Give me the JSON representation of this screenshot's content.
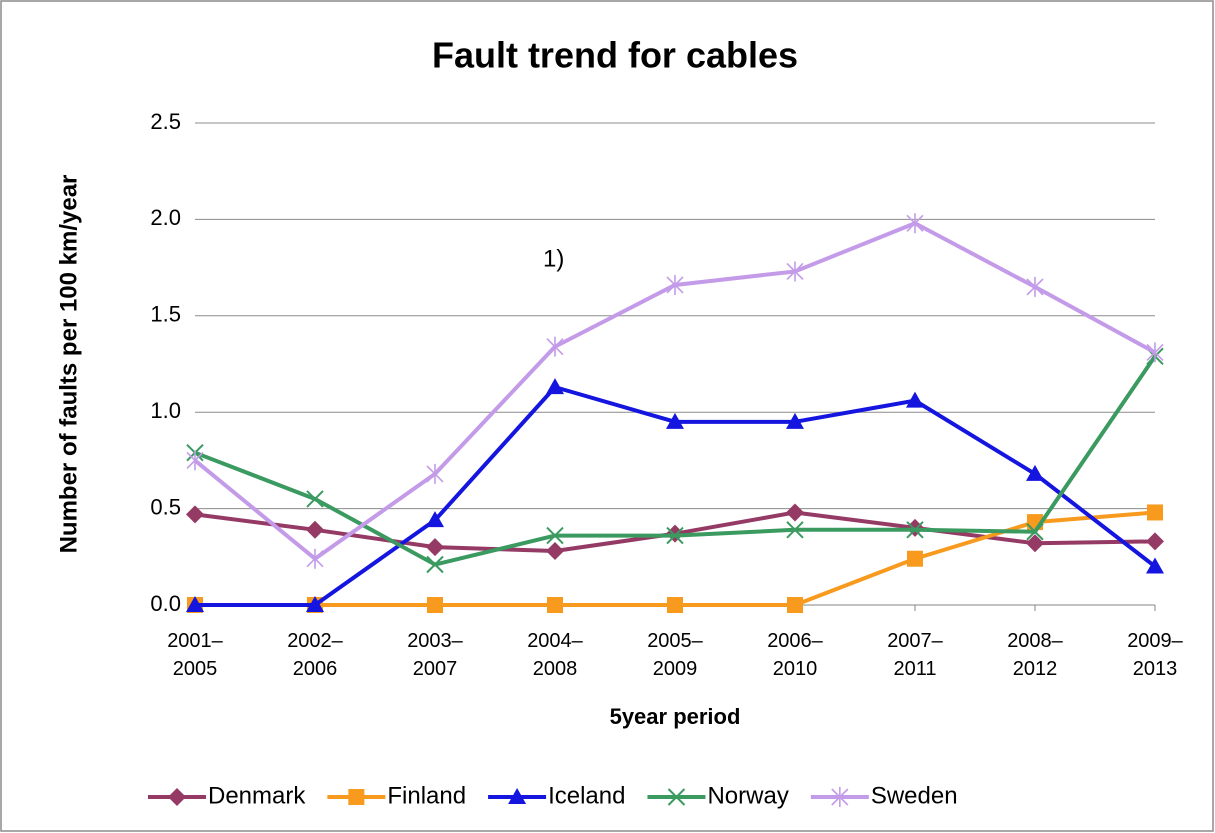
{
  "chart_data": {
    "type": "line",
    "title": "Fault trend for cables",
    "x_label": "5year period",
    "y_label": "Number of faults per 100 km/year",
    "annotation": "1)",
    "categories": [
      "2001–2005",
      "2002–2006",
      "2003–2007",
      "2004–2008",
      "2005–2009",
      "2006–2010",
      "2007–2011",
      "2008–2012",
      "2009–2013"
    ],
    "series": [
      {
        "name": "Denmark",
        "color": "#953a64",
        "marker": "diamond",
        "values": [
          0.47,
          0.39,
          0.3,
          0.28,
          0.37,
          0.48,
          0.4,
          0.32,
          0.33
        ]
      },
      {
        "name": "Finland",
        "color": "#f79a1e",
        "marker": "square",
        "values": [
          0,
          0,
          0,
          0,
          0,
          0,
          0.24,
          0.43,
          0.48
        ]
      },
      {
        "name": "Iceland",
        "color": "#1515e0",
        "marker": "triangle",
        "values": [
          0,
          0,
          0.44,
          1.13,
          0.95,
          0.95,
          1.06,
          0.68,
          0.2
        ]
      },
      {
        "name": "Norway",
        "color": "#3a9a60",
        "marker": "x",
        "values": [
          0.79,
          0.55,
          0.21,
          0.36,
          0.36,
          0.39,
          0.39,
          0.38,
          1.29
        ]
      },
      {
        "name": "Sweden",
        "color": "#c39be8",
        "marker": "star",
        "values": [
          0.75,
          0.24,
          0.68,
          1.34,
          1.66,
          1.73,
          1.98,
          1.65,
          1.31
        ]
      }
    ],
    "ylim": [
      0,
      2.5
    ],
    "yticks": [
      {
        "value": 0,
        "label": "0.0"
      },
      {
        "value": 0.5,
        "label": "0.5"
      },
      {
        "value": 1,
        "label": "1.0"
      },
      {
        "value": 1.5,
        "label": "1.5"
      },
      {
        "value": 2,
        "label": "2.0"
      },
      {
        "value": 2.5,
        "label": "2.5"
      }
    ],
    "grid": true,
    "legend": "bottom"
  }
}
